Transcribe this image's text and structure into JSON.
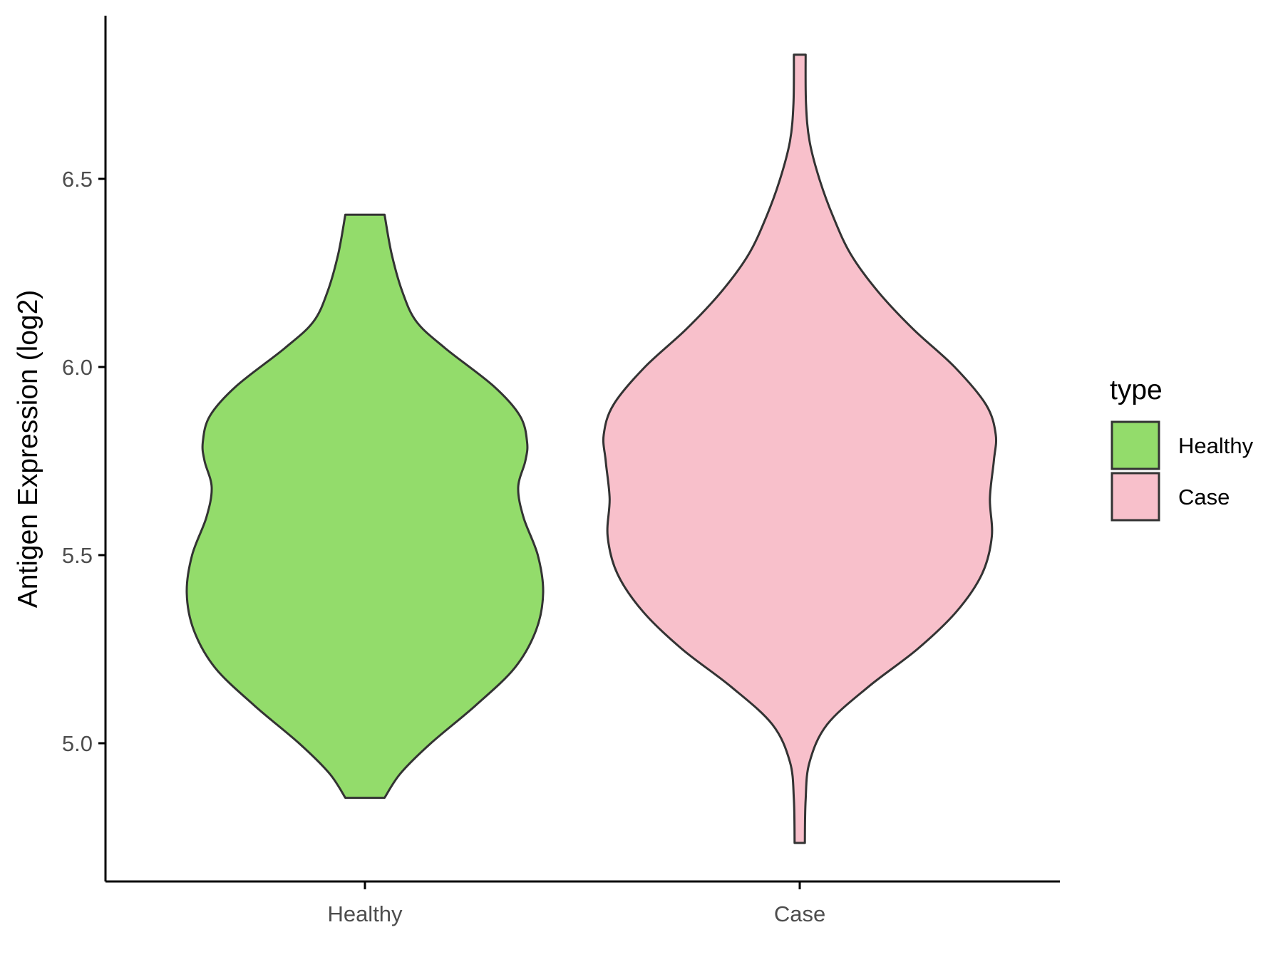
{
  "chart_data": {
    "type": "violin",
    "ylabel": "Antigen Expression (log2)",
    "xlabel": "",
    "ylim": [
      4.62,
      6.92
    ],
    "y_ticks": [
      "5.0",
      "5.5",
      "6.0",
      "6.5"
    ],
    "y_tick_values": [
      5.0,
      5.5,
      6.0,
      6.5
    ],
    "categories": [
      "Healthy",
      "Case"
    ],
    "legend": {
      "title": "type",
      "position": "right",
      "entries": [
        {
          "label": "Healthy",
          "color": "#93dc6b"
        },
        {
          "label": "Case",
          "color": "#f8c0cb"
        }
      ]
    },
    "series": [
      {
        "name": "Healthy",
        "color": "#93dc6b",
        "min": 4.855,
        "max": 6.405,
        "density": [
          {
            "y": 4.855,
            "w": 0.11
          },
          {
            "y": 4.92,
            "w": 0.2
          },
          {
            "y": 5.0,
            "w": 0.37
          },
          {
            "y": 5.1,
            "w": 0.62
          },
          {
            "y": 5.2,
            "w": 0.84
          },
          {
            "y": 5.3,
            "w": 0.96
          },
          {
            "y": 5.4,
            "w": 1.0
          },
          {
            "y": 5.5,
            "w": 0.97
          },
          {
            "y": 5.6,
            "w": 0.89
          },
          {
            "y": 5.68,
            "w": 0.86
          },
          {
            "y": 5.75,
            "w": 0.9
          },
          {
            "y": 5.8,
            "w": 0.91
          },
          {
            "y": 5.87,
            "w": 0.87
          },
          {
            "y": 5.95,
            "w": 0.72
          },
          {
            "y": 6.05,
            "w": 0.45
          },
          {
            "y": 6.12,
            "w": 0.29
          },
          {
            "y": 6.2,
            "w": 0.21
          },
          {
            "y": 6.3,
            "w": 0.15
          },
          {
            "y": 6.405,
            "w": 0.11
          }
        ]
      },
      {
        "name": "Case",
        "color": "#f8c0cb",
        "min": 4.735,
        "max": 6.83,
        "density": [
          {
            "y": 4.735,
            "w": 0.026
          },
          {
            "y": 4.85,
            "w": 0.03
          },
          {
            "y": 4.95,
            "w": 0.05
          },
          {
            "y": 5.05,
            "w": 0.14
          },
          {
            "y": 5.15,
            "w": 0.35
          },
          {
            "y": 5.25,
            "w": 0.6
          },
          {
            "y": 5.35,
            "w": 0.8
          },
          {
            "y": 5.45,
            "w": 0.93
          },
          {
            "y": 5.55,
            "w": 0.98
          },
          {
            "y": 5.65,
            "w": 0.97
          },
          {
            "y": 5.75,
            "w": 0.99
          },
          {
            "y": 5.82,
            "w": 1.0
          },
          {
            "y": 5.9,
            "w": 0.95
          },
          {
            "y": 6.0,
            "w": 0.79
          },
          {
            "y": 6.1,
            "w": 0.58
          },
          {
            "y": 6.2,
            "w": 0.4
          },
          {
            "y": 6.3,
            "w": 0.26
          },
          {
            "y": 6.4,
            "w": 0.17
          },
          {
            "y": 6.5,
            "w": 0.1
          },
          {
            "y": 6.6,
            "w": 0.05
          },
          {
            "y": 6.7,
            "w": 0.032
          },
          {
            "y": 6.83,
            "w": 0.03
          }
        ]
      }
    ],
    "grid": false
  }
}
